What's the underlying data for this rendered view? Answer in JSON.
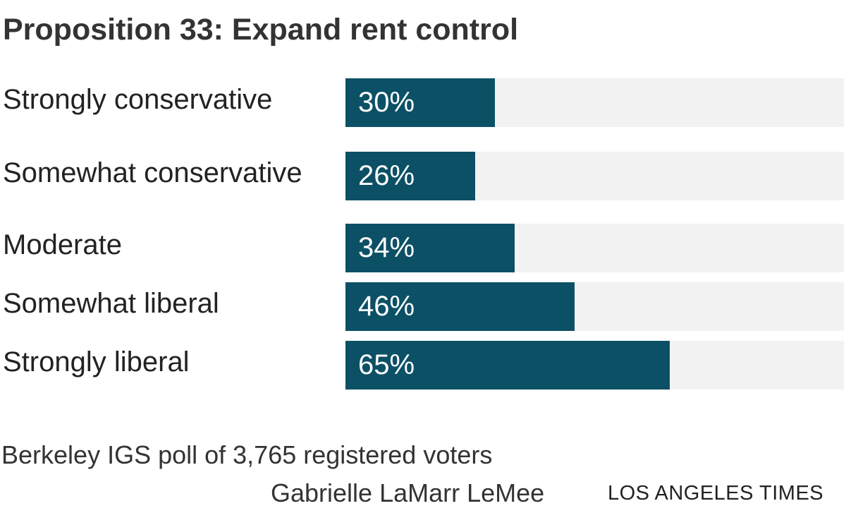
{
  "chart_data": {
    "type": "bar",
    "orientation": "horizontal",
    "title": "Proposition 33: Expand rent control",
    "categories": [
      "Strongly conservative",
      "Somewhat conservative",
      "Moderate",
      "Somewhat liberal",
      "Strongly liberal"
    ],
    "values": [
      30,
      26,
      34,
      46,
      65
    ],
    "value_labels": [
      "30%",
      "26%",
      "34%",
      "46%",
      "65%"
    ],
    "color": "#0c5066",
    "xlim": [
      0,
      100
    ],
    "source": "Berkeley IGS poll of 3,765 registered voters",
    "credit": "Gabrielle LaMarr LeMee",
    "publisher": "LOS ANGELES TIMES"
  }
}
